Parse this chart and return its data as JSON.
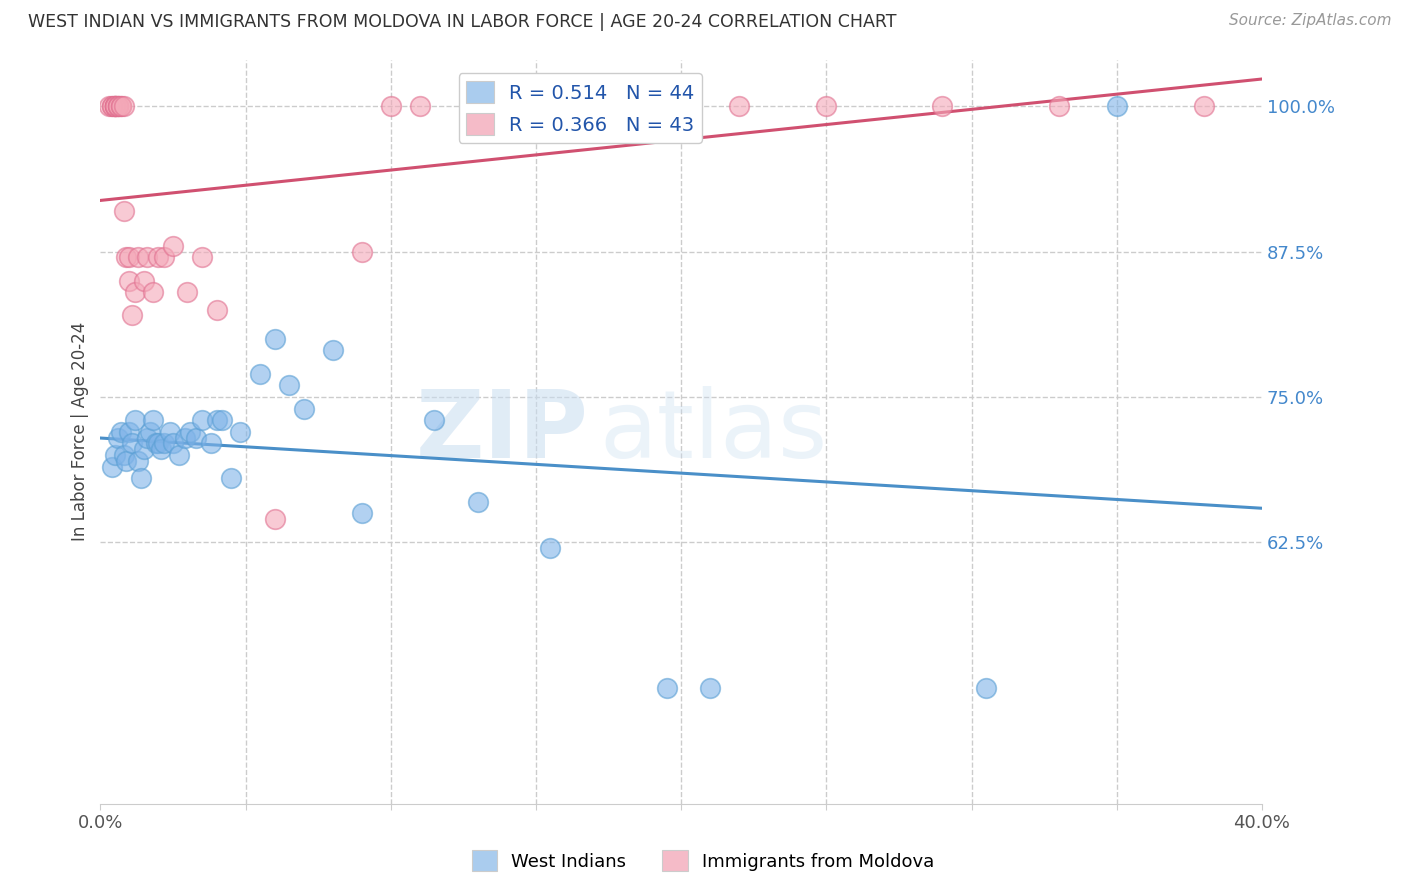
{
  "title": "WEST INDIAN VS IMMIGRANTS FROM MOLDOVA IN LABOR FORCE | AGE 20-24 CORRELATION CHART",
  "source": "Source: ZipAtlas.com",
  "ylabel": "In Labor Force | Age 20-24",
  "xlim": [
    0.0,
    0.4
  ],
  "ylim": [
    0.4,
    1.04
  ],
  "x_ticks": [
    0.0,
    0.05,
    0.1,
    0.15,
    0.2,
    0.25,
    0.3,
    0.35,
    0.4
  ],
  "x_tick_labels": [
    "0.0%",
    "",
    "",
    "",
    "",
    "",
    "",
    "",
    "40.0%"
  ],
  "y_ticks": [
    0.625,
    0.75,
    0.875,
    1.0
  ],
  "y_tick_labels": [
    "62.5%",
    "75.0%",
    "87.5%",
    "100.0%"
  ],
  "blue_R": 0.514,
  "blue_N": 44,
  "pink_R": 0.366,
  "pink_N": 43,
  "blue_color": "#7fb3e8",
  "pink_color": "#f4a8b8",
  "blue_edge_color": "#5a9fd4",
  "pink_edge_color": "#e07090",
  "blue_line_color": "#4a8fc8",
  "pink_line_color": "#d05070",
  "legend_blue_fill": "#aaccee",
  "legend_pink_fill": "#f5bbc8",
  "watermark_zip": "ZIP",
  "watermark_atlas": "atlas",
  "blue_x": [
    0.004,
    0.005,
    0.006,
    0.007,
    0.008,
    0.009,
    0.01,
    0.011,
    0.012,
    0.013,
    0.014,
    0.015,
    0.016,
    0.017,
    0.018,
    0.019,
    0.02,
    0.021,
    0.022,
    0.024,
    0.025,
    0.027,
    0.029,
    0.031,
    0.033,
    0.035,
    0.038,
    0.04,
    0.042,
    0.045,
    0.048,
    0.055,
    0.06,
    0.065,
    0.07,
    0.08,
    0.09,
    0.115,
    0.13,
    0.155,
    0.195,
    0.21,
    0.305,
    0.35
  ],
  "blue_y": [
    0.69,
    0.7,
    0.715,
    0.72,
    0.7,
    0.695,
    0.72,
    0.71,
    0.73,
    0.695,
    0.68,
    0.705,
    0.715,
    0.72,
    0.73,
    0.71,
    0.71,
    0.705,
    0.71,
    0.72,
    0.71,
    0.7,
    0.715,
    0.72,
    0.715,
    0.73,
    0.71,
    0.73,
    0.73,
    0.68,
    0.72,
    0.77,
    0.8,
    0.76,
    0.74,
    0.79,
    0.65,
    0.73,
    0.66,
    0.62,
    0.5,
    0.5,
    0.5,
    1.0
  ],
  "pink_x": [
    0.003,
    0.004,
    0.004,
    0.005,
    0.005,
    0.005,
    0.005,
    0.005,
    0.006,
    0.006,
    0.006,
    0.007,
    0.007,
    0.008,
    0.008,
    0.009,
    0.01,
    0.01,
    0.011,
    0.012,
    0.013,
    0.015,
    0.016,
    0.018,
    0.02,
    0.022,
    0.025,
    0.03,
    0.035,
    0.04,
    0.06,
    0.09,
    0.1,
    0.11,
    0.13,
    0.16,
    0.19,
    0.2,
    0.22,
    0.25,
    0.29,
    0.33,
    0.38
  ],
  "pink_y": [
    1.0,
    1.0,
    1.0,
    1.0,
    1.0,
    1.0,
    1.0,
    1.0,
    1.0,
    1.0,
    1.0,
    1.0,
    1.0,
    0.91,
    1.0,
    0.87,
    0.85,
    0.87,
    0.82,
    0.84,
    0.87,
    0.85,
    0.87,
    0.84,
    0.87,
    0.87,
    0.88,
    0.84,
    0.87,
    0.825,
    0.645,
    0.875,
    1.0,
    1.0,
    1.0,
    1.0,
    1.0,
    1.0,
    1.0,
    1.0,
    1.0,
    1.0,
    1.0
  ]
}
